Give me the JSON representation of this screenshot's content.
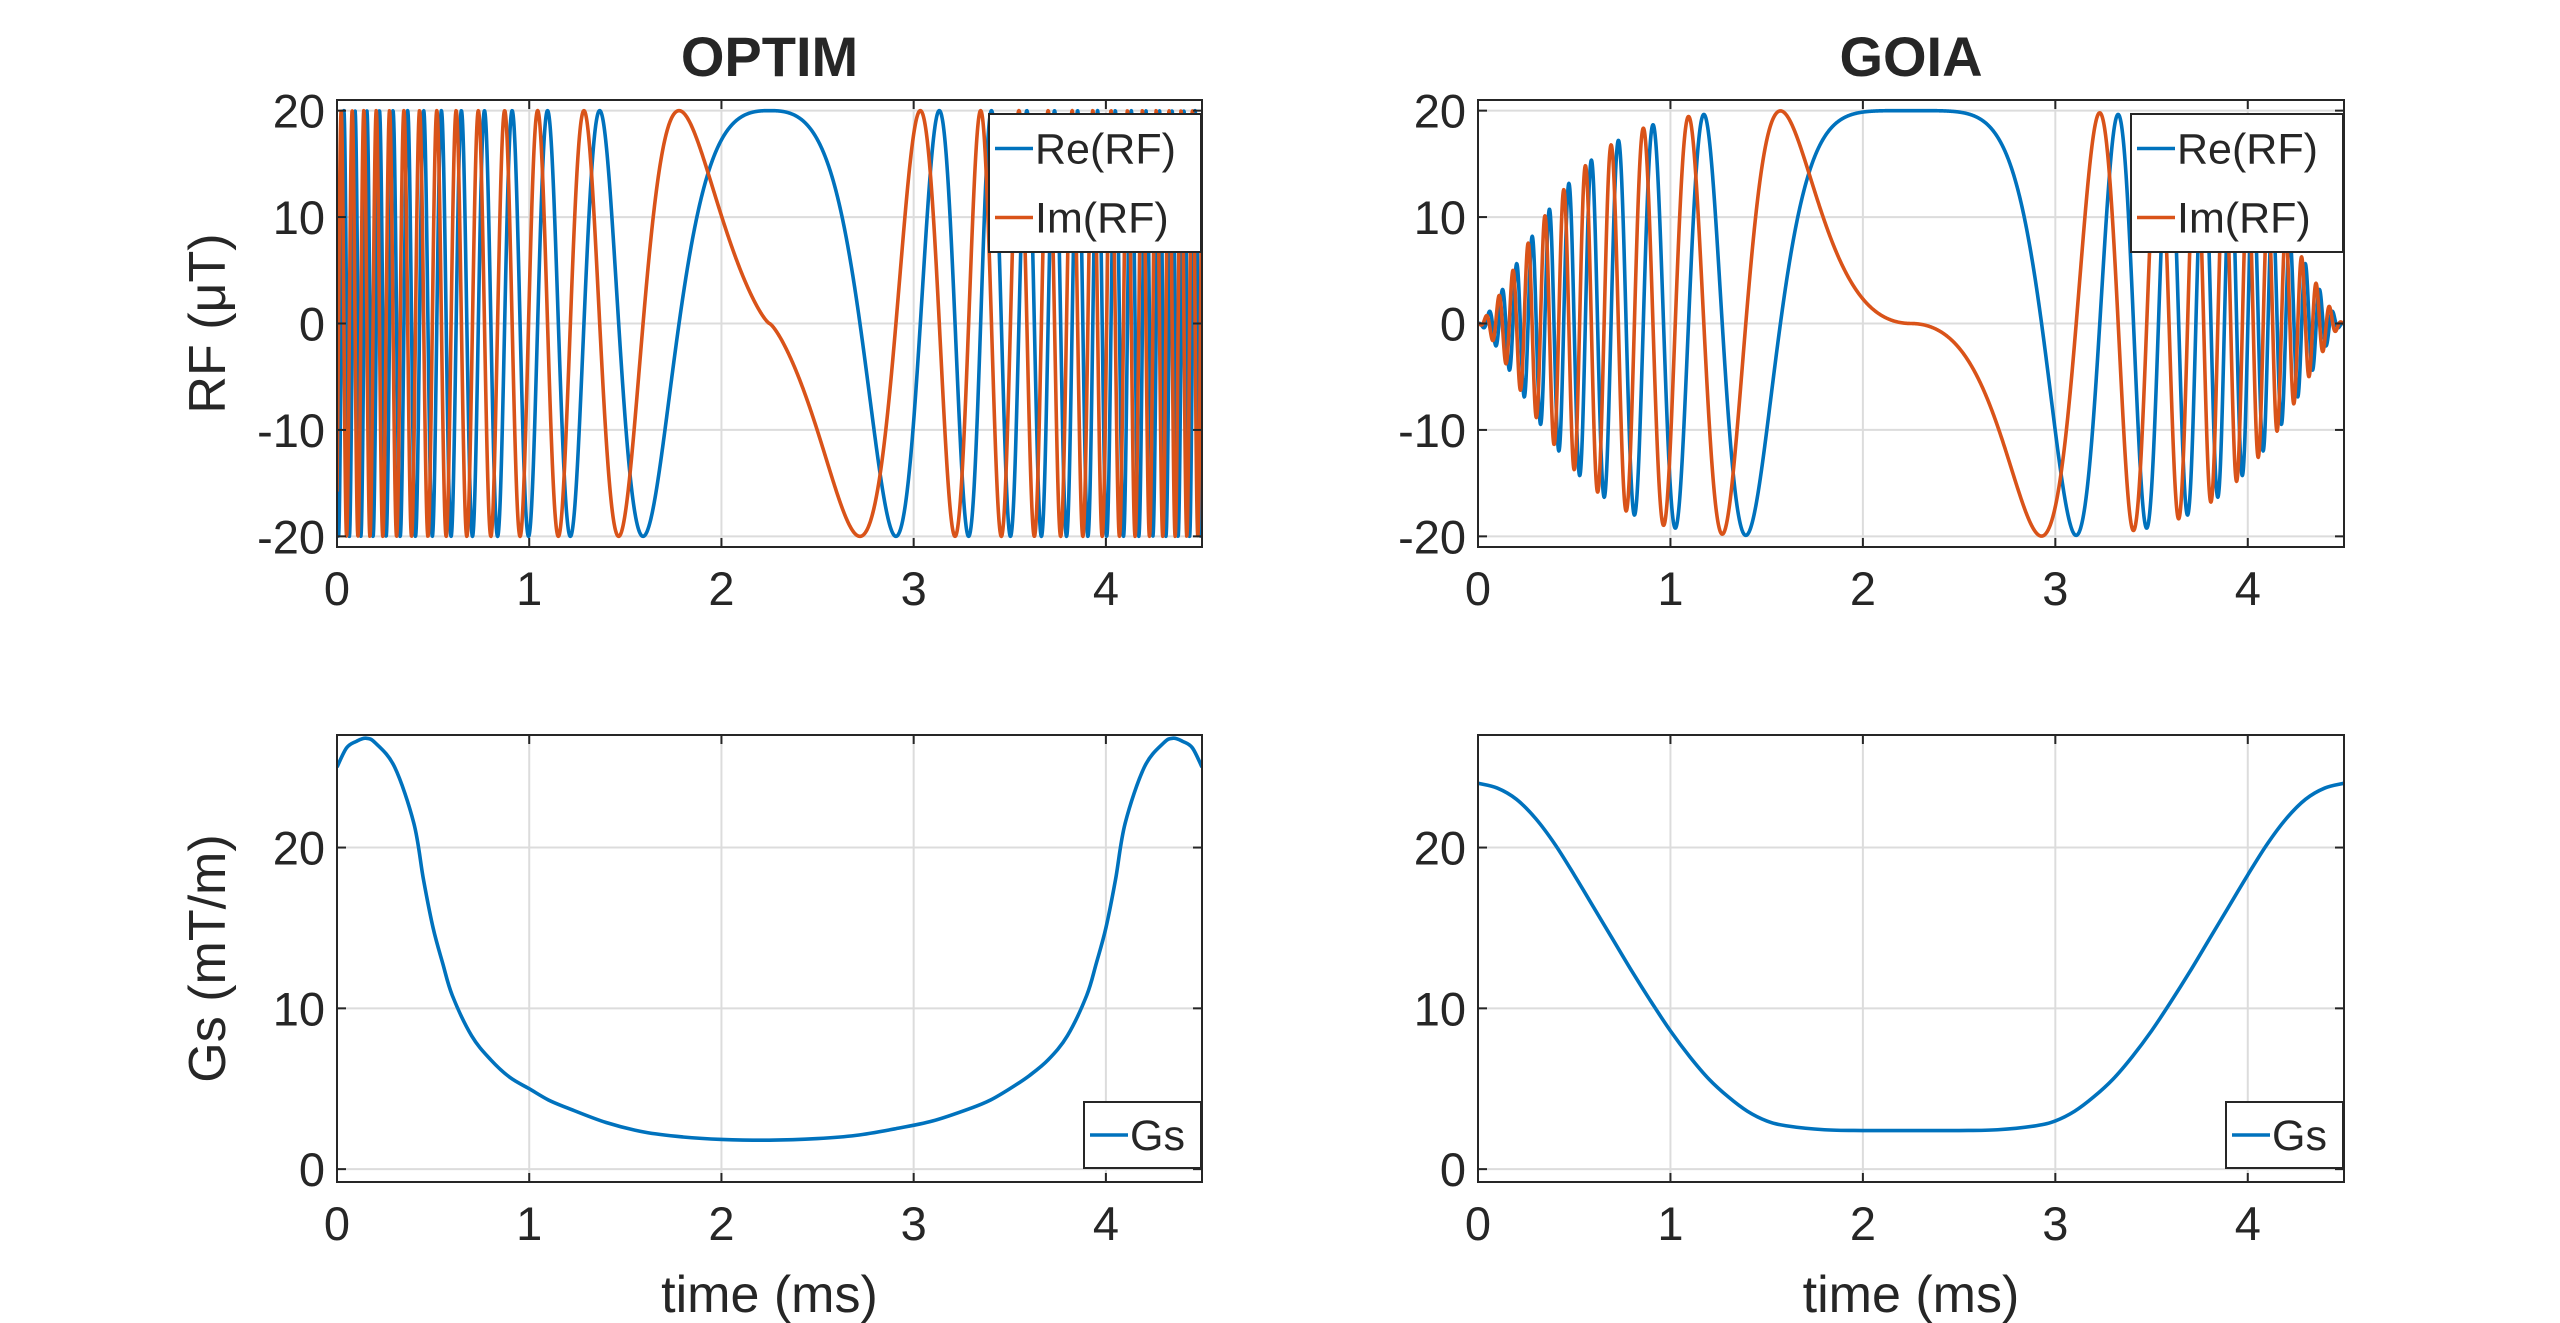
{
  "colors": {
    "re": "#0072BD",
    "im": "#D95319",
    "gs": "#0072BD"
  },
  "chart_data": [
    {
      "id": "optim-rf",
      "type": "line",
      "title": "OPTIM",
      "xlabel": "",
      "ylabel": "RF (μT)",
      "xlim": [
        0,
        4.5
      ],
      "ylim": [
        -21,
        21
      ],
      "xticks": [
        0,
        1,
        2,
        3,
        4
      ],
      "yticks": [
        -20,
        -10,
        0,
        10,
        20
      ],
      "xtick_labels": [
        "0",
        "1",
        "2",
        "3",
        "4"
      ],
      "ytick_labels": [
        "-20",
        "-10",
        "0",
        "10",
        "20"
      ],
      "legend_position": "top-right",
      "series": [
        {
          "name": "Re(RF)",
          "color_key": "re",
          "amplitude": 20,
          "phase_fn": "optim",
          "component": "cos"
        },
        {
          "name": "Im(RF)",
          "color_key": "im",
          "amplitude": 20,
          "phase_fn": "optim",
          "component": "sin"
        }
      ]
    },
    {
      "id": "goia-rf",
      "type": "line",
      "title": "GOIA",
      "xlabel": "",
      "ylabel": "",
      "xlim": [
        0,
        4.5
      ],
      "ylim": [
        -21,
        21
      ],
      "xticks": [
        0,
        1,
        2,
        3,
        4
      ],
      "yticks": [
        -20,
        -10,
        0,
        10,
        20
      ],
      "xtick_labels": [
        "0",
        "1",
        "2",
        "3",
        "4"
      ],
      "ytick_labels": [
        "-20",
        "-10",
        "0",
        "10",
        "20"
      ],
      "legend_position": "top-right",
      "series": [
        {
          "name": "Re(RF)",
          "color_key": "re",
          "amplitude": 20,
          "phase_fn": "goia",
          "component": "cos"
        },
        {
          "name": "Im(RF)",
          "color_key": "im",
          "amplitude": 20,
          "phase_fn": "goia",
          "component": "sin"
        }
      ]
    },
    {
      "id": "optim-gs",
      "type": "line",
      "title": "",
      "xlabel": "time (ms)",
      "ylabel": "Gs (mT/m)",
      "xlim": [
        0,
        4.5
      ],
      "ylim": [
        -0.8,
        27
      ],
      "xticks": [
        0,
        1,
        2,
        3,
        4
      ],
      "yticks": [
        0,
        10,
        20
      ],
      "xtick_labels": [
        "0",
        "1",
        "2",
        "3",
        "4"
      ],
      "ytick_labels": [
        "0",
        "10",
        "20"
      ],
      "legend_position": "bottom-right",
      "series": [
        {
          "name": "Gs",
          "color_key": "gs",
          "x": [
            0,
            0.05,
            0.1,
            0.15,
            0.2,
            0.3,
            0.4,
            0.45,
            0.5,
            0.55,
            0.6,
            0.7,
            0.8,
            0.9,
            1.0,
            1.1,
            1.2,
            1.4,
            1.6,
            1.8,
            2.0,
            2.25,
            2.5,
            2.7,
            2.9,
            3.1,
            3.3,
            3.4,
            3.5,
            3.6,
            3.7,
            3.8,
            3.9,
            3.95,
            4.0,
            4.05,
            4.1,
            4.2,
            4.3,
            4.35,
            4.4,
            4.45,
            4.5
          ],
          "y": [
            25.0,
            26.2,
            26.6,
            26.8,
            26.5,
            25.0,
            21.5,
            18.0,
            15.0,
            12.8,
            10.8,
            8.3,
            6.8,
            5.7,
            5.0,
            4.3,
            3.8,
            2.9,
            2.3,
            2.0,
            1.85,
            1.8,
            1.9,
            2.1,
            2.5,
            3.0,
            3.8,
            4.3,
            5.0,
            5.8,
            6.8,
            8.3,
            10.8,
            12.8,
            15.0,
            18.0,
            21.5,
            25.0,
            26.5,
            26.8,
            26.6,
            26.2,
            25.0
          ]
        }
      ]
    },
    {
      "id": "goia-gs",
      "type": "line",
      "title": "",
      "xlabel": "time (ms)",
      "ylabel": "",
      "xlim": [
        0,
        4.5
      ],
      "ylim": [
        -0.8,
        27
      ],
      "xticks": [
        0,
        1,
        2,
        3,
        4
      ],
      "yticks": [
        0,
        10,
        20
      ],
      "xtick_labels": [
        "0",
        "1",
        "2",
        "3",
        "4"
      ],
      "ytick_labels": [
        "0",
        "10",
        "20"
      ],
      "legend_position": "bottom-right",
      "series": [
        {
          "name": "Gs",
          "color_key": "gs",
          "x": [
            0,
            0.1,
            0.2,
            0.3,
            0.4,
            0.5,
            0.6,
            0.7,
            0.8,
            0.9,
            1.0,
            1.1,
            1.2,
            1.3,
            1.4,
            1.5,
            1.6,
            1.8,
            2.0,
            2.25,
            2.5,
            2.7,
            2.9,
            3.0,
            3.1,
            3.2,
            3.3,
            3.4,
            3.5,
            3.6,
            3.7,
            3.8,
            3.9,
            4.0,
            4.1,
            4.2,
            4.3,
            4.4,
            4.5
          ],
          "y": [
            24.0,
            23.7,
            23.0,
            21.8,
            20.2,
            18.3,
            16.3,
            14.3,
            12.3,
            10.4,
            8.6,
            7.0,
            5.6,
            4.5,
            3.6,
            3.0,
            2.7,
            2.45,
            2.4,
            2.4,
            2.4,
            2.45,
            2.7,
            3.0,
            3.6,
            4.5,
            5.6,
            7.0,
            8.6,
            10.4,
            12.3,
            14.3,
            16.3,
            18.3,
            20.2,
            21.8,
            23.0,
            23.7,
            24.0
          ]
        }
      ]
    }
  ]
}
